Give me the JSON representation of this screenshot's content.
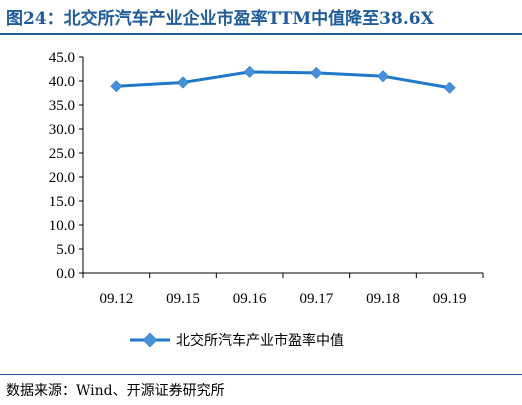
{
  "title": "图24：北交所汽车产业企业市盈率TTM中值降至38.6X",
  "source": "数据来源：Wind、开源证券研究所",
  "colors": {
    "accent": "#1f5c99",
    "series": "#1f78c8",
    "axis": "#000000"
  },
  "chart_data": {
    "type": "line",
    "categories": [
      "09.12",
      "09.15",
      "09.16",
      "09.17",
      "09.18",
      "09.19"
    ],
    "series": [
      {
        "name": "北交所汽车产业市盈率中值",
        "values": [
          38.9,
          39.7,
          41.9,
          41.7,
          41.0,
          38.6
        ]
      }
    ],
    "ylim": [
      0,
      45
    ],
    "yticks": [
      "0.0",
      "5.0",
      "10.0",
      "15.0",
      "20.0",
      "25.0",
      "30.0",
      "35.0",
      "40.0",
      "45.0"
    ],
    "ytick_values": [
      0,
      5,
      10,
      15,
      20,
      25,
      30,
      35,
      40,
      45
    ],
    "grid": false,
    "legend": "bottom"
  }
}
